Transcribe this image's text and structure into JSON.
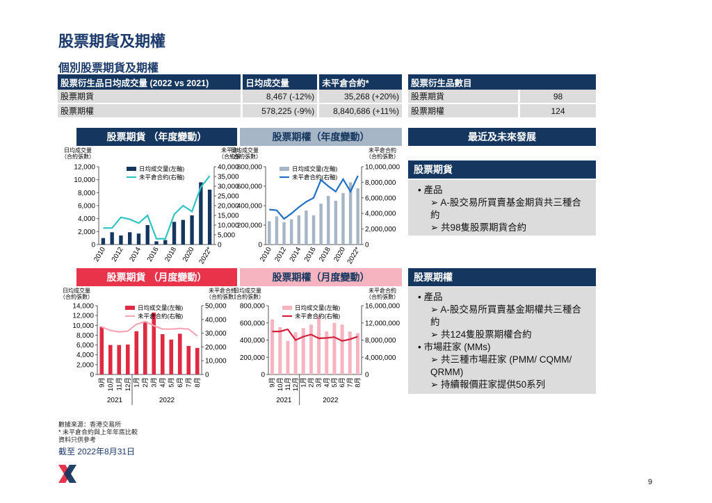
{
  "page": {
    "title": "股票期貨及期權",
    "subtitle": "個別股票期貨及期權",
    "page_number": "9",
    "notes": [
      "數據來源：香港交易所",
      "* 未平倉合約與上年年底比較",
      "資料只供參考"
    ],
    "as_of": "截至 2022年8月31日"
  },
  "adv_table": {
    "headers": [
      "股票衍生品日均成交量 (2022 vs 2021)",
      "日均成交量",
      "未平倉合約*"
    ],
    "rows": [
      [
        "股票期貨",
        "8,467 (-12%)",
        "35,268 (+20%)"
      ],
      [
        "股票期權",
        "578,225 (-9%)",
        "8,840,686 (+11%)"
      ]
    ]
  },
  "count_table": {
    "headers": [
      "股票衍生品數目",
      ""
    ],
    "rows": [
      [
        "股票期貨",
        "98"
      ],
      [
        "股票期權",
        "124"
      ]
    ]
  },
  "chart_headers": {
    "sf_year": "股票期貨 （年度變動）",
    "so_year": "股票期權（年度變動）",
    "sf_month": "股票期貨 （月度變動）",
    "so_month": "股票期權（月度變動）"
  },
  "axis_labels": {
    "left": [
      "日均成交量",
      "（合約張數）"
    ],
    "right": [
      "未平倉合約",
      "（合約張數）"
    ]
  },
  "legend": {
    "adv_left": "日均成交量(左軸)",
    "oi_right": "未平倉合約(右軸)"
  },
  "year_groups": [
    "2021",
    "2022"
  ],
  "side": {
    "header": "最近及未來發展",
    "sf": {
      "header": "股票期貨",
      "bullets": [
        {
          "level": 1,
          "text": "•  產品"
        },
        {
          "level": 2,
          "text": "➢ A-股交易所買賣基金期貨共三種合"
        },
        {
          "level": 2,
          "text": "約"
        },
        {
          "level": 2,
          "text": "➢ 共98隻股票期貨合約"
        }
      ]
    },
    "so": {
      "header": "股票期權",
      "bullets": [
        {
          "level": 1,
          "text": "•  產品"
        },
        {
          "level": 2,
          "text": "➢ A-股交易所買賣基金期權共三種合"
        },
        {
          "level": 2,
          "text": "約"
        },
        {
          "level": 2,
          "text": "➢ 共124隻股票期權合約"
        },
        {
          "level": 1,
          "text": "•  市場莊家 (MMs)"
        },
        {
          "level": 2,
          "text": "➢ 共三種市場莊家 (PMM/ CQMM/"
        },
        {
          "level": 2,
          "text": "QRMM)"
        },
        {
          "level": 2,
          "text": "➢ 持續報價莊家提供50系列"
        }
      ]
    }
  },
  "colors": {
    "navy": "#15375f",
    "teal": "#2ec4c4",
    "grey_bar": "#a7b6c7",
    "blue_line": "#1f6fc7",
    "red": "#e02a44",
    "pink_line": "#f5a6b5",
    "pink_bar": "#f5b4bf",
    "dark_red": "#d4203c"
  },
  "chart_data": [
    {
      "type": "bar",
      "id": "sf_year",
      "categories": [
        "2010",
        "2011",
        "2012",
        "2013",
        "2014",
        "2015",
        "2016",
        "2017",
        "2018",
        "2019",
        "2020",
        "2021",
        "2022*"
      ],
      "tick_labels": [
        "2010",
        "2012",
        "2014",
        "2016",
        "2018",
        "2020",
        "2022*"
      ],
      "bar_series": {
        "name": "日均成交量(左軸)",
        "values": [
          1000,
          1900,
          1400,
          1900,
          1700,
          3000,
          500,
          700,
          3500,
          3800,
          4500,
          9600,
          8467
        ]
      },
      "line_series": {
        "name": "未平倉合約(右軸)",
        "values": [
          8500,
          8500,
          14000,
          13000,
          11000,
          15000,
          3000,
          3000,
          15500,
          20000,
          17000,
          29500,
          35268
        ]
      },
      "ylim_left": [
        0,
        12000
      ],
      "yticks_left": [
        "0",
        "2,000",
        "4,000",
        "6,000",
        "8,000",
        "10,000",
        "12,000"
      ],
      "ylim_right": [
        0,
        40000
      ],
      "yticks_right": [
        "0",
        "5,000",
        "10,000",
        "15,000",
        "20,000",
        "25,000",
        "30,000",
        "35,000",
        "40,000"
      ],
      "colors": [
        "#15375f",
        "#2ec4c4"
      ]
    },
    {
      "type": "bar",
      "id": "so_year",
      "categories": [
        "2010",
        "2011",
        "2012",
        "2013",
        "2014",
        "2015",
        "2016",
        "2017",
        "2018",
        "2019",
        "2020",
        "2021",
        "2022*"
      ],
      "tick_labels": [
        "2010",
        "2012",
        "2014",
        "2016",
        "2018",
        "2020",
        "2022*"
      ],
      "bar_series": {
        "name": "日均成交量(左軸)",
        "values": [
          240000,
          290000,
          230000,
          260000,
          300000,
          350000,
          300000,
          420000,
          500000,
          450000,
          530000,
          640000,
          578225
        ]
      },
      "line_series": {
        "name": "未平倉合約(右軸)",
        "values": [
          4500000,
          4400000,
          3300000,
          4000000,
          4800000,
          5500000,
          6000000,
          8300000,
          7500000,
          6800000,
          8400000,
          6800000,
          8840686
        ]
      },
      "ylim_left": [
        0,
        800000
      ],
      "yticks_left": [
        "0",
        "200,000",
        "400,000",
        "600,000",
        "800,000"
      ],
      "ylim_right": [
        0,
        10000000
      ],
      "yticks_right": [
        "0",
        "2,000,000",
        "4,000,000",
        "6,000,000",
        "8,000,000",
        "10,000,000"
      ],
      "colors": [
        "#a7b6c7",
        "#1f6fc7"
      ]
    },
    {
      "type": "bar",
      "id": "sf_month",
      "categories": [
        "9月",
        "10月",
        "11月",
        "12月",
        "1月",
        "2月",
        "3月",
        "4月",
        "5月",
        "6月",
        "7月",
        "8月"
      ],
      "tick_labels": [
        "9月",
        "10月",
        "11月",
        "12月",
        "1月",
        "2月",
        "3月",
        "4月",
        "5月",
        "6月",
        "7月",
        "8月"
      ],
      "bar_series": {
        "name": "日均成交量(左軸)",
        "values": [
          9700,
          6000,
          6000,
          6100,
          8800,
          10800,
          12600,
          8200,
          7100,
          8300,
          5800,
          5400
        ]
      },
      "line_series": {
        "name": "未平倉合約(右軸)",
        "values": [
          34500,
          32000,
          31000,
          31500,
          36500,
          38500,
          35500,
          33000,
          33000,
          33500,
          33000,
          28000
        ]
      },
      "ylim_left": [
        0,
        14000
      ],
      "yticks_left": [
        "0",
        "2,000",
        "4,000",
        "6,000",
        "8,000",
        "10,000",
        "12,000",
        "14,000"
      ],
      "ylim_right": [
        0,
        50000
      ],
      "yticks_right": [
        "0",
        "10,000",
        "20,000",
        "30,000",
        "40,000",
        "50,000"
      ],
      "colors": [
        "#e02a44",
        "#f5a6b5"
      ]
    },
    {
      "type": "bar",
      "id": "so_month",
      "categories": [
        "9月",
        "10月",
        "11月",
        "12月",
        "1月",
        "2月",
        "3月",
        "4月",
        "5月",
        "6月",
        "7月",
        "8月"
      ],
      "tick_labels": [
        "9月",
        "10月",
        "11月",
        "12月",
        "1月",
        "2月",
        "3月",
        "4月",
        "5月",
        "6月",
        "7月",
        "8月"
      ],
      "bar_series": {
        "name": "日均成交量(左軸)",
        "values": [
          640000,
          550000,
          390000,
          490000,
          540000,
          580000,
          680000,
          500000,
          600000,
          580000,
          500000,
          480000
        ]
      },
      "line_series": {
        "name": "未平倉合約(右軸)",
        "values": [
          10000000,
          10000000,
          10500000,
          8000000,
          8800000,
          9300000,
          8400000,
          8500000,
          8700000,
          7800000,
          8200000,
          8800000
        ]
      },
      "ylim_left": [
        0,
        800000
      ],
      "yticks_left": [
        "0",
        "200,000",
        "400,000",
        "600,000",
        "800,000"
      ],
      "ylim_right": [
        0,
        16000000
      ],
      "yticks_right": [
        "4,000,000",
        "8,000,000",
        "12,000,000",
        "16,000,000"
      ],
      "yticks_right_values": [
        4000000,
        8000000,
        12000000,
        16000000
      ],
      "colors": [
        "#f5b4bf",
        "#d4203c"
      ]
    }
  ]
}
